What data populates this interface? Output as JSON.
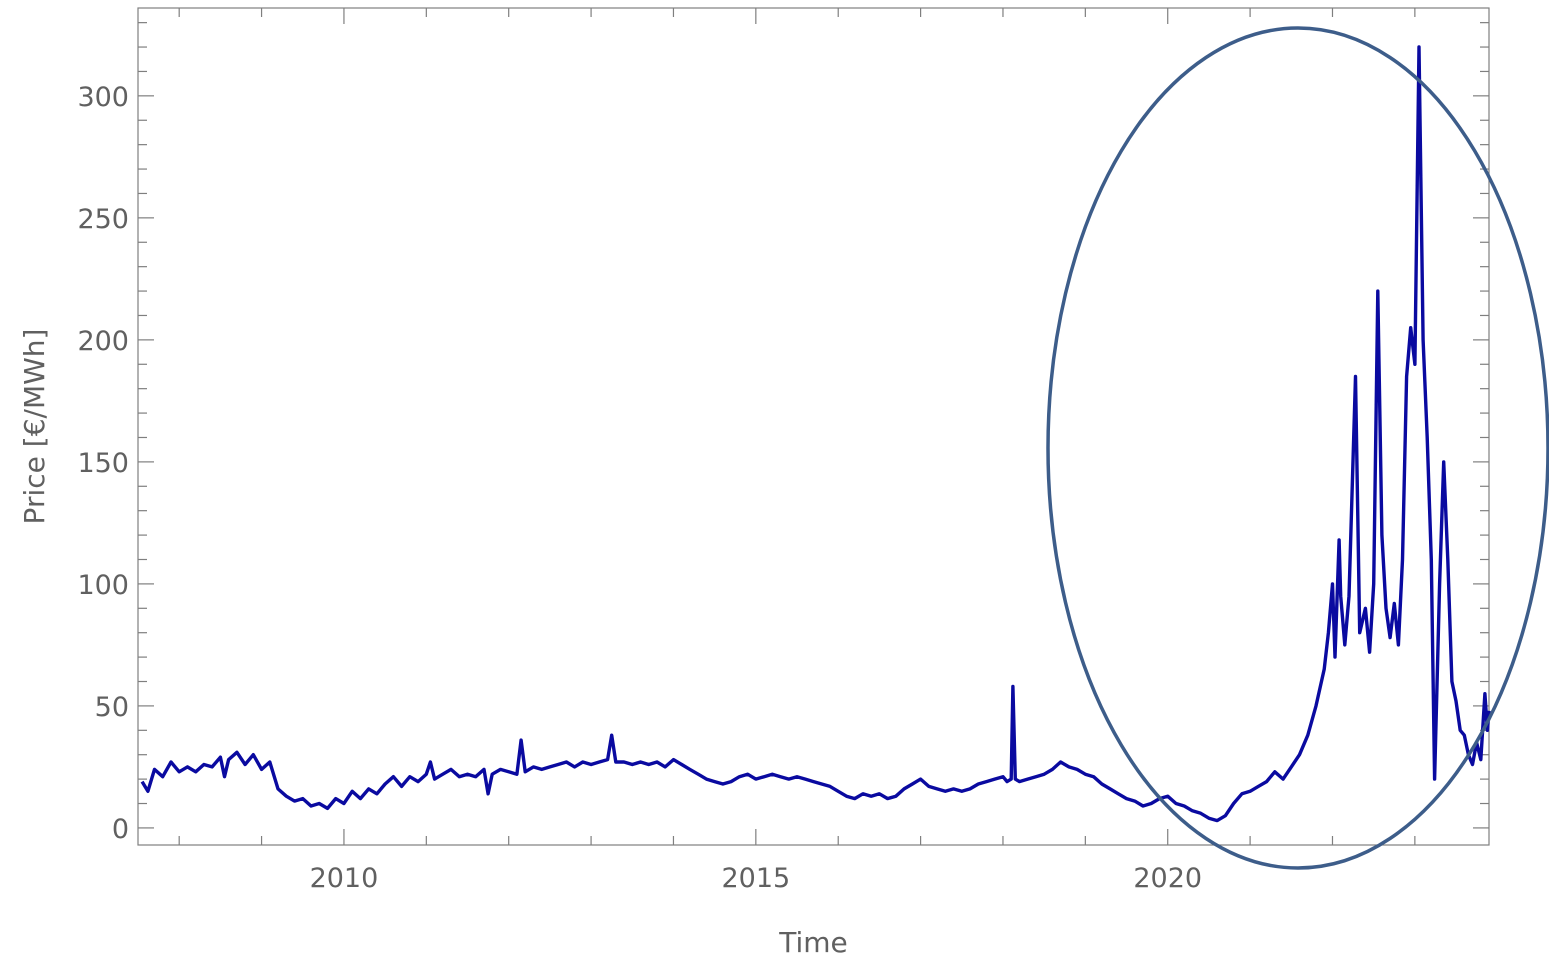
{
  "chart_data": {
    "type": "line",
    "title": "",
    "xlabel": "Time",
    "ylabel": "Price [€/MWh]",
    "xlim": [
      2007.5,
      2023.9
    ],
    "ylim": [
      -7,
      336
    ],
    "x_ticks": [
      2010,
      2015,
      2020
    ],
    "x_tick_labels": [
      "2010",
      "2015",
      "2020"
    ],
    "y_ticks": [
      0,
      50,
      100,
      150,
      200,
      250,
      300
    ],
    "y_tick_labels": [
      "0",
      "50",
      "100",
      "150",
      "200",
      "250",
      "300"
    ],
    "grid": false,
    "legend": "none",
    "series_color": "#0a0aa0",
    "annotation": {
      "shape": "ellipse",
      "color": "#3d5d8a",
      "highlights_x_range": [
        2019.9,
        2023.9
      ]
    },
    "series": [
      {
        "values": [
          [
            2007.55,
            19
          ],
          [
            2007.62,
            15
          ],
          [
            2007.7,
            24
          ],
          [
            2007.8,
            21
          ],
          [
            2007.9,
            27
          ],
          [
            2008.0,
            23
          ],
          [
            2008.1,
            25
          ],
          [
            2008.2,
            23
          ],
          [
            2008.3,
            26
          ],
          [
            2008.4,
            25
          ],
          [
            2008.5,
            29
          ],
          [
            2008.55,
            21
          ],
          [
            2008.6,
            28
          ],
          [
            2008.7,
            31
          ],
          [
            2008.8,
            26
          ],
          [
            2008.9,
            30
          ],
          [
            2009.0,
            24
          ],
          [
            2009.1,
            27
          ],
          [
            2009.2,
            16
          ],
          [
            2009.3,
            13
          ],
          [
            2009.4,
            11
          ],
          [
            2009.5,
            12
          ],
          [
            2009.6,
            9
          ],
          [
            2009.7,
            10
          ],
          [
            2009.8,
            8
          ],
          [
            2009.9,
            12
          ],
          [
            2010.0,
            10
          ],
          [
            2010.1,
            15
          ],
          [
            2010.2,
            12
          ],
          [
            2010.3,
            16
          ],
          [
            2010.4,
            14
          ],
          [
            2010.5,
            18
          ],
          [
            2010.6,
            21
          ],
          [
            2010.7,
            17
          ],
          [
            2010.8,
            21
          ],
          [
            2010.9,
            19
          ],
          [
            2011.0,
            22
          ],
          [
            2011.05,
            27
          ],
          [
            2011.1,
            20
          ],
          [
            2011.2,
            22
          ],
          [
            2011.3,
            24
          ],
          [
            2011.4,
            21
          ],
          [
            2011.5,
            22
          ],
          [
            2011.6,
            21
          ],
          [
            2011.7,
            24
          ],
          [
            2011.75,
            14
          ],
          [
            2011.8,
            22
          ],
          [
            2011.9,
            24
          ],
          [
            2012.0,
            23
          ],
          [
            2012.1,
            22
          ],
          [
            2012.15,
            36
          ],
          [
            2012.2,
            23
          ],
          [
            2012.3,
            25
          ],
          [
            2012.4,
            24
          ],
          [
            2012.5,
            25
          ],
          [
            2012.6,
            26
          ],
          [
            2012.7,
            27
          ],
          [
            2012.8,
            25
          ],
          [
            2012.9,
            27
          ],
          [
            2013.0,
            26
          ],
          [
            2013.1,
            27
          ],
          [
            2013.2,
            28
          ],
          [
            2013.25,
            38
          ],
          [
            2013.3,
            27
          ],
          [
            2013.4,
            27
          ],
          [
            2013.5,
            26
          ],
          [
            2013.6,
            27
          ],
          [
            2013.7,
            26
          ],
          [
            2013.8,
            27
          ],
          [
            2013.9,
            25
          ],
          [
            2014.0,
            28
          ],
          [
            2014.1,
            26
          ],
          [
            2014.2,
            24
          ],
          [
            2014.3,
            22
          ],
          [
            2014.4,
            20
          ],
          [
            2014.5,
            19
          ],
          [
            2014.6,
            18
          ],
          [
            2014.7,
            19
          ],
          [
            2014.8,
            21
          ],
          [
            2014.9,
            22
          ],
          [
            2015.0,
            20
          ],
          [
            2015.1,
            21
          ],
          [
            2015.2,
            22
          ],
          [
            2015.3,
            21
          ],
          [
            2015.4,
            20
          ],
          [
            2015.5,
            21
          ],
          [
            2015.6,
            20
          ],
          [
            2015.7,
            19
          ],
          [
            2015.8,
            18
          ],
          [
            2015.9,
            17
          ],
          [
            2016.0,
            15
          ],
          [
            2016.1,
            13
          ],
          [
            2016.2,
            12
          ],
          [
            2016.3,
            14
          ],
          [
            2016.4,
            13
          ],
          [
            2016.5,
            14
          ],
          [
            2016.6,
            12
          ],
          [
            2016.7,
            13
          ],
          [
            2016.8,
            16
          ],
          [
            2016.9,
            18
          ],
          [
            2017.0,
            20
          ],
          [
            2017.1,
            17
          ],
          [
            2017.2,
            16
          ],
          [
            2017.3,
            15
          ],
          [
            2017.4,
            16
          ],
          [
            2017.5,
            15
          ],
          [
            2017.6,
            16
          ],
          [
            2017.7,
            18
          ],
          [
            2017.8,
            19
          ],
          [
            2017.9,
            20
          ],
          [
            2018.0,
            21
          ],
          [
            2018.05,
            19
          ],
          [
            2018.1,
            20
          ],
          [
            2018.12,
            58
          ],
          [
            2018.15,
            20
          ],
          [
            2018.2,
            19
          ],
          [
            2018.3,
            20
          ],
          [
            2018.4,
            21
          ],
          [
            2018.5,
            22
          ],
          [
            2018.6,
            24
          ],
          [
            2018.7,
            27
          ],
          [
            2018.8,
            25
          ],
          [
            2018.9,
            24
          ],
          [
            2019.0,
            22
          ],
          [
            2019.1,
            21
          ],
          [
            2019.2,
            18
          ],
          [
            2019.3,
            16
          ],
          [
            2019.4,
            14
          ],
          [
            2019.5,
            12
          ],
          [
            2019.6,
            11
          ],
          [
            2019.7,
            9
          ],
          [
            2019.8,
            10
          ],
          [
            2019.9,
            12
          ],
          [
            2020.0,
            13
          ],
          [
            2020.1,
            10
          ],
          [
            2020.2,
            9
          ],
          [
            2020.3,
            7
          ],
          [
            2020.4,
            6
          ],
          [
            2020.5,
            4
          ],
          [
            2020.6,
            3
          ],
          [
            2020.7,
            5
          ],
          [
            2020.8,
            10
          ],
          [
            2020.9,
            14
          ],
          [
            2021.0,
            15
          ],
          [
            2021.1,
            17
          ],
          [
            2021.2,
            19
          ],
          [
            2021.3,
            23
          ],
          [
            2021.4,
            20
          ],
          [
            2021.5,
            25
          ],
          [
            2021.6,
            30
          ],
          [
            2021.7,
            38
          ],
          [
            2021.8,
            50
          ],
          [
            2021.9,
            65
          ],
          [
            2021.95,
            80
          ],
          [
            2022.0,
            100
          ],
          [
            2022.03,
            70
          ],
          [
            2022.08,
            118
          ],
          [
            2022.1,
            95
          ],
          [
            2022.15,
            75
          ],
          [
            2022.2,
            95
          ],
          [
            2022.28,
            185
          ],
          [
            2022.33,
            80
          ],
          [
            2022.4,
            90
          ],
          [
            2022.45,
            72
          ],
          [
            2022.5,
            100
          ],
          [
            2022.55,
            220
          ],
          [
            2022.6,
            120
          ],
          [
            2022.65,
            90
          ],
          [
            2022.7,
            78
          ],
          [
            2022.75,
            92
          ],
          [
            2022.8,
            75
          ],
          [
            2022.85,
            110
          ],
          [
            2022.9,
            185
          ],
          [
            2022.95,
            205
          ],
          [
            2023.0,
            190
          ],
          [
            2023.05,
            320
          ],
          [
            2023.1,
            200
          ],
          [
            2023.15,
            160
          ],
          [
            2023.2,
            110
          ],
          [
            2023.24,
            20
          ],
          [
            2023.3,
            100
          ],
          [
            2023.35,
            150
          ],
          [
            2023.4,
            110
          ],
          [
            2023.45,
            60
          ],
          [
            2023.5,
            52
          ],
          [
            2023.55,
            40
          ],
          [
            2023.6,
            38
          ],
          [
            2023.65,
            30
          ],
          [
            2023.7,
            26
          ],
          [
            2023.75,
            35
          ],
          [
            2023.8,
            28
          ],
          [
            2023.85,
            55
          ],
          [
            2023.88,
            40
          ],
          [
            2023.9,
            48
          ]
        ]
      }
    ]
  }
}
